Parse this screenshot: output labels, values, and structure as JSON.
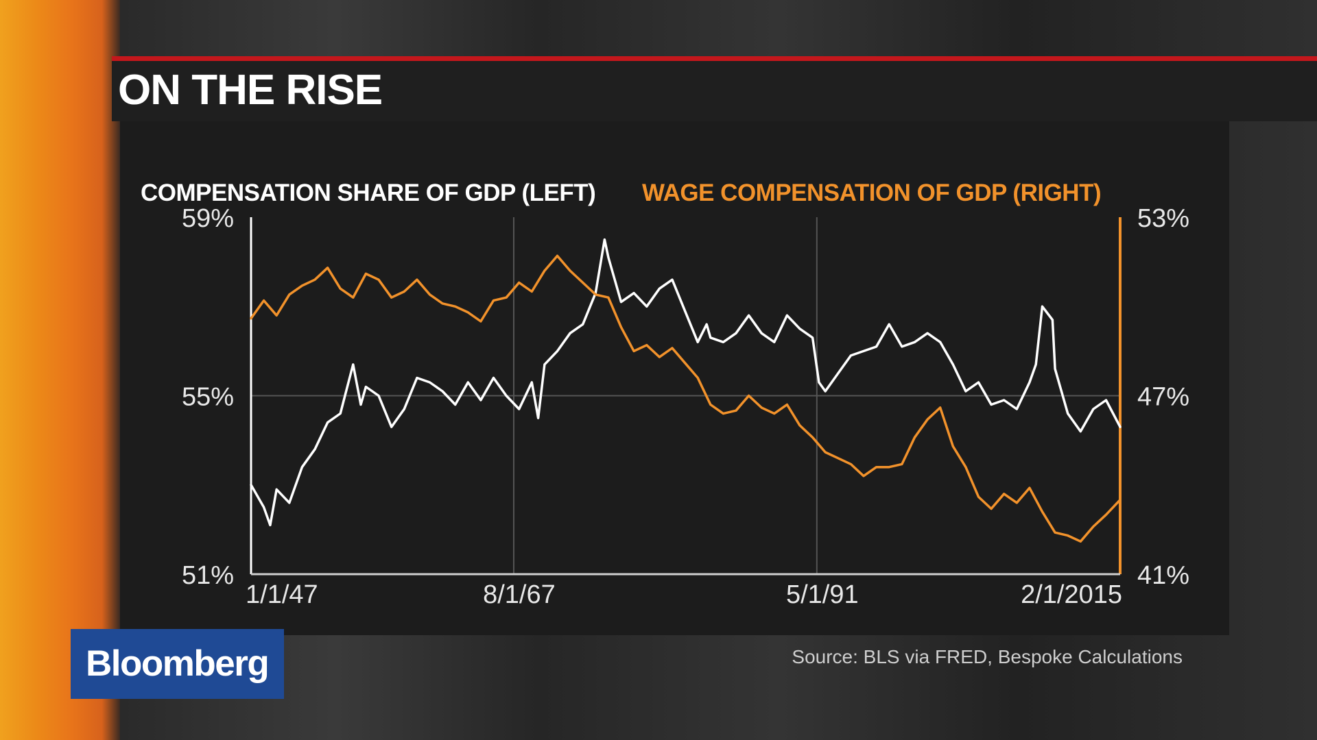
{
  "title": "ON THE RISE",
  "source": "Source: BLS via FRED, Bespoke Calculations",
  "brand": "Bloomberg",
  "colors": {
    "accent_red": "#c4171c",
    "series_white": "#ffffff",
    "series_orange": "#f2922b",
    "brand_blue": "#1f4a95"
  },
  "chart_data": {
    "type": "line",
    "legend": {
      "left": "COMPENSATION SHARE OF GDP (LEFT)",
      "right": "WAGE COMPENSATION OF GDP (RIGHT)",
      "placement": "top"
    },
    "x_ticks": [
      "1/1/47",
      "8/1/67",
      "5/1/91",
      "2/1/2015"
    ],
    "y_left_ticks": [
      "59%",
      "55%",
      "51%"
    ],
    "y_right_ticks": [
      "53%",
      "47%",
      "41%"
    ],
    "y_left_range": [
      51,
      59
    ],
    "y_right_range": [
      41,
      53
    ],
    "x_range": [
      1947,
      2015.1
    ],
    "grid": true,
    "series": [
      {
        "name": "COMPENSATION SHARE OF GDP (LEFT)",
        "axis": "left",
        "color": "#ffffff",
        "points": [
          [
            1947,
            53.0
          ],
          [
            1948,
            52.5
          ],
          [
            1948.5,
            52.1
          ],
          [
            1949,
            52.9
          ],
          [
            1950,
            52.6
          ],
          [
            1951,
            53.4
          ],
          [
            1952,
            53.8
          ],
          [
            1953,
            54.4
          ],
          [
            1954,
            54.6
          ],
          [
            1955,
            55.7
          ],
          [
            1955.6,
            54.8
          ],
          [
            1956,
            55.2
          ],
          [
            1957,
            55.0
          ],
          [
            1958,
            54.3
          ],
          [
            1959,
            54.7
          ],
          [
            1960,
            55.4
          ],
          [
            1961,
            55.3
          ],
          [
            1962,
            55.1
          ],
          [
            1963,
            54.8
          ],
          [
            1964,
            55.3
          ],
          [
            1965,
            54.9
          ],
          [
            1966,
            55.4
          ],
          [
            1967,
            55.0
          ],
          [
            1968,
            54.7
          ],
          [
            1969,
            55.3
          ],
          [
            1969.5,
            54.5
          ],
          [
            1970,
            55.7
          ],
          [
            1971,
            56.0
          ],
          [
            1972,
            56.4
          ],
          [
            1973,
            56.6
          ],
          [
            1974,
            57.3
          ],
          [
            1974.7,
            58.5
          ],
          [
            1975,
            58.1
          ],
          [
            1976,
            57.1
          ],
          [
            1977,
            57.3
          ],
          [
            1978,
            57.0
          ],
          [
            1979,
            57.4
          ],
          [
            1980,
            57.6
          ],
          [
            1981,
            56.9
          ],
          [
            1982,
            56.2
          ],
          [
            1982.7,
            56.6
          ],
          [
            1983,
            56.3
          ],
          [
            1984,
            56.2
          ],
          [
            1985,
            56.4
          ],
          [
            1986,
            56.8
          ],
          [
            1987,
            56.4
          ],
          [
            1988,
            56.2
          ],
          [
            1989,
            56.8
          ],
          [
            1990,
            56.5
          ],
          [
            1991,
            56.3
          ],
          [
            1991.5,
            55.3
          ],
          [
            1992,
            55.1
          ],
          [
            1993,
            55.5
          ],
          [
            1994,
            55.9
          ],
          [
            1995,
            56.0
          ],
          [
            1996,
            56.1
          ],
          [
            1997,
            56.6
          ],
          [
            1998,
            56.1
          ],
          [
            1999,
            56.2
          ],
          [
            2000,
            56.4
          ],
          [
            2001,
            56.2
          ],
          [
            2002,
            55.7
          ],
          [
            2003,
            55.1
          ],
          [
            2004,
            55.3
          ],
          [
            2005,
            54.8
          ],
          [
            2006,
            54.9
          ],
          [
            2007,
            54.7
          ],
          [
            2008,
            55.3
          ],
          [
            2008.5,
            55.7
          ],
          [
            2009,
            57.0
          ],
          [
            2009.8,
            56.7
          ],
          [
            2010,
            55.6
          ],
          [
            2011,
            54.6
          ],
          [
            2012,
            54.2
          ],
          [
            2013,
            54.7
          ],
          [
            2014,
            54.9
          ],
          [
            2015.1,
            54.3
          ]
        ]
      },
      {
        "name": "WAGE COMPENSATION OF GDP (RIGHT)",
        "axis": "right",
        "color": "#f2922b",
        "points": [
          [
            1947,
            49.6
          ],
          [
            1948,
            50.2
          ],
          [
            1949,
            49.7
          ],
          [
            1950,
            50.4
          ],
          [
            1951,
            50.7
          ],
          [
            1952,
            50.9
          ],
          [
            1953,
            51.3
          ],
          [
            1954,
            50.6
          ],
          [
            1955,
            50.3
          ],
          [
            1956,
            51.1
          ],
          [
            1957,
            50.9
          ],
          [
            1958,
            50.3
          ],
          [
            1959,
            50.5
          ],
          [
            1960,
            50.9
          ],
          [
            1961,
            50.4
          ],
          [
            1962,
            50.1
          ],
          [
            1963,
            50.0
          ],
          [
            1964,
            49.8
          ],
          [
            1965,
            49.5
          ],
          [
            1966,
            50.2
          ],
          [
            1967,
            50.3
          ],
          [
            1968,
            50.8
          ],
          [
            1969,
            50.5
          ],
          [
            1970,
            51.2
          ],
          [
            1971,
            51.7
          ],
          [
            1972,
            51.2
          ],
          [
            1973,
            50.8
          ],
          [
            1974,
            50.4
          ],
          [
            1975,
            50.3
          ],
          [
            1976,
            49.3
          ],
          [
            1977,
            48.5
          ],
          [
            1978,
            48.7
          ],
          [
            1979,
            48.3
          ],
          [
            1980,
            48.6
          ],
          [
            1981,
            48.1
          ],
          [
            1982,
            47.6
          ],
          [
            1983,
            46.7
          ],
          [
            1984,
            46.4
          ],
          [
            1985,
            46.5
          ],
          [
            1986,
            47.0
          ],
          [
            1987,
            46.6
          ],
          [
            1988,
            46.4
          ],
          [
            1989,
            46.7
          ],
          [
            1990,
            46.0
          ],
          [
            1991,
            45.6
          ],
          [
            1992,
            45.1
          ],
          [
            1993,
            44.9
          ],
          [
            1994,
            44.7
          ],
          [
            1995,
            44.3
          ],
          [
            1996,
            44.6
          ],
          [
            1997,
            44.6
          ],
          [
            1998,
            44.7
          ],
          [
            1999,
            45.6
          ],
          [
            2000,
            46.2
          ],
          [
            2001,
            46.6
          ],
          [
            2002,
            45.3
          ],
          [
            2003,
            44.6
          ],
          [
            2004,
            43.6
          ],
          [
            2005,
            43.2
          ],
          [
            2006,
            43.7
          ],
          [
            2007,
            43.4
          ],
          [
            2008,
            43.9
          ],
          [
            2009,
            43.1
          ],
          [
            2010,
            42.4
          ],
          [
            2011,
            42.3
          ],
          [
            2012,
            42.1
          ],
          [
            2013,
            42.6
          ],
          [
            2014,
            43.0
          ],
          [
            2015.1,
            43.5
          ]
        ]
      }
    ]
  }
}
